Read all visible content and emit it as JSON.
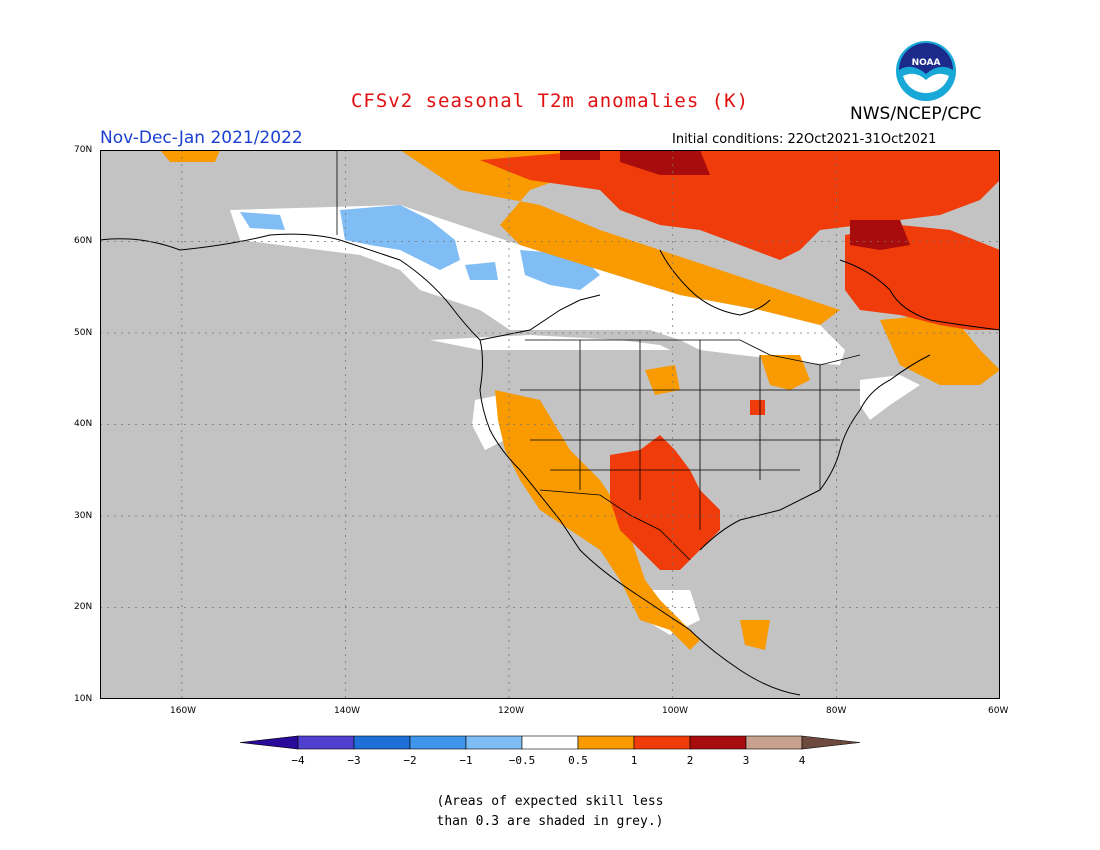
{
  "title": "CFSv2 seasonal T2m anomalies (K)",
  "org": "NWS/NCEP/CPC",
  "logo_text": "NOAA",
  "period": "Nov-Dec-Jan 2021/2022",
  "initial_conditions": "Initial conditions: 22Oct2021-31Oct2021",
  "lat_labels": [
    "70N",
    "60N",
    "50N",
    "40N",
    "30N",
    "20N",
    "10N"
  ],
  "lon_labels": [
    "160W",
    "140W",
    "120W",
    "100W",
    "80W",
    "60W"
  ],
  "colorbar": {
    "ticks": [
      "−4",
      "−3",
      "−2",
      "−1",
      "−0.5",
      "0.5",
      "1",
      "2",
      "3",
      "4"
    ],
    "colors": [
      "#2a0a9a",
      "#5040d0",
      "#1f6fd8",
      "#3f95ea",
      "#80bdf5",
      "#ffffff",
      "#f89a00",
      "#f03c0a",
      "#a80c0c",
      "#c7a08e",
      "#6e4a3e"
    ]
  },
  "note_line1": "(Areas of expected skill less",
  "note_line2": "than 0.3 are shaded in grey.)",
  "colors": {
    "grey": "#c3c3c3",
    "title": "#e01010",
    "period": "#1a3fd0"
  }
}
